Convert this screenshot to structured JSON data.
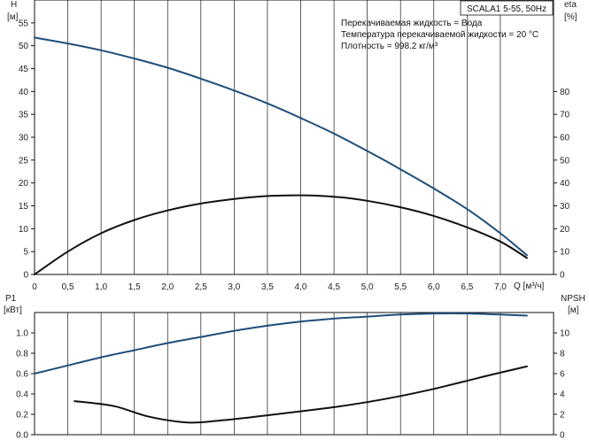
{
  "title": "SCALA1 5-55, 50Hz",
  "conditions": [
    "Перекачиваемая жидкость = Вода",
    "Температура перекачиваемой жидкости = 20 °C",
    "Плотность = 998.2 кг/м³"
  ],
  "colors": {
    "blue": "#1f4e79",
    "black": "#111111"
  },
  "chart_data": [
    {
      "type": "line",
      "xlabel": "Q [м³/ч]",
      "x_ticks": [
        "0",
        "0,5",
        "1,0",
        "1,5",
        "2,0",
        "2,5",
        "3,0",
        "3,5",
        "4,0",
        "4,5",
        "5,0",
        "5,5",
        "6,0",
        "6,5",
        "7,0"
      ],
      "xlim": [
        0,
        7.8
      ],
      "y_left": {
        "label": "H",
        "unit": "[м]",
        "ticks": [
          0,
          5,
          10,
          15,
          20,
          25,
          30,
          35,
          40,
          45,
          50,
          55
        ],
        "lim": [
          0,
          60
        ]
      },
      "y_right": {
        "label": "eta",
        "unit": "[%]",
        "ticks": [
          0,
          10,
          20,
          30,
          40,
          50,
          60,
          70,
          80
        ],
        "lim": [
          0,
          120
        ]
      },
      "grid": "vertical",
      "series": [
        {
          "axis": "left",
          "color": "#1f4e79",
          "x": [
            0,
            0.5,
            1.0,
            1.5,
            2.0,
            2.5,
            3.0,
            3.5,
            4.0,
            4.5,
            5.0,
            5.5,
            6.0,
            6.5,
            7.0,
            7.4
          ],
          "y": [
            51.8,
            50.5,
            49.0,
            47.2,
            45.2,
            42.8,
            40.2,
            37.4,
            34.2,
            30.8,
            27.0,
            23.0,
            18.8,
            14.3,
            9.0,
            4.2
          ]
        },
        {
          "axis": "right",
          "color": "#111111",
          "x": [
            0,
            0.5,
            1.0,
            1.5,
            2.0,
            2.5,
            3.0,
            3.5,
            4.0,
            4.5,
            5.0,
            5.5,
            6.0,
            6.5,
            7.0,
            7.4
          ],
          "y": [
            0,
            10.0,
            18.0,
            23.8,
            28.0,
            31.0,
            33.0,
            34.3,
            34.6,
            34.0,
            32.2,
            29.4,
            25.6,
            20.6,
            14.4,
            7.2
          ]
        }
      ]
    },
    {
      "type": "line",
      "y_left": {
        "label": "P1",
        "unit": "[кВт]",
        "ticks": [
          "0.0",
          "0.2",
          "0.4",
          "0.6",
          "0.8",
          "1.0"
        ],
        "lim": [
          0,
          1.2
        ]
      },
      "y_right": {
        "label": "NPSH",
        "unit": "[м]",
        "ticks": [
          0,
          2,
          4,
          6,
          8,
          10
        ],
        "lim": [
          0,
          12
        ]
      },
      "xlim": [
        0,
        7.8
      ],
      "grid": "vertical",
      "series": [
        {
          "axis": "left",
          "color": "#1f4e79",
          "x": [
            0,
            0.5,
            1.0,
            1.5,
            2.0,
            2.5,
            3.0,
            3.5,
            4.0,
            4.5,
            5.0,
            5.5,
            6.0,
            6.5,
            7.0,
            7.4
          ],
          "y": [
            0.6,
            0.68,
            0.76,
            0.83,
            0.9,
            0.96,
            1.02,
            1.07,
            1.11,
            1.14,
            1.16,
            1.18,
            1.19,
            1.19,
            1.18,
            1.17
          ]
        },
        {
          "axis": "right",
          "color": "#111111",
          "x": [
            0.6,
            1.2,
            1.7,
            2.3,
            2.8,
            3.5,
            4.0,
            4.5,
            5.0,
            5.5,
            6.0,
            6.5,
            7.0,
            7.4
          ],
          "y": [
            3.3,
            2.8,
            1.8,
            1.2,
            1.4,
            1.9,
            2.3,
            2.7,
            3.2,
            3.8,
            4.5,
            5.3,
            6.1,
            6.7
          ]
        }
      ]
    }
  ]
}
